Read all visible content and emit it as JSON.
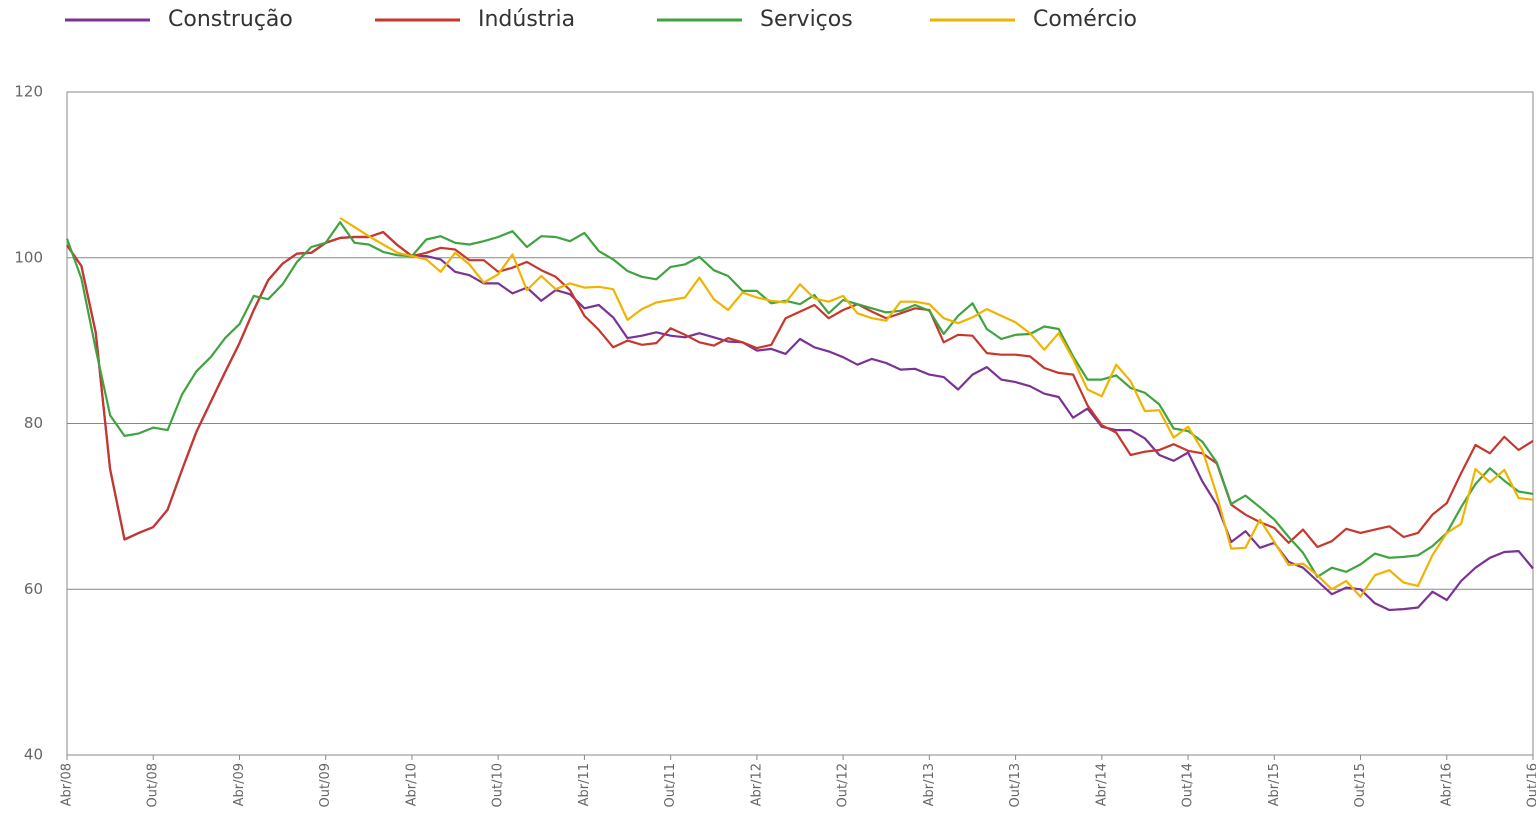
{
  "chart_data": {
    "type": "line",
    "categories": [
      "Abr/08",
      null,
      null,
      null,
      null,
      null,
      "Out/08",
      null,
      null,
      null,
      null,
      null,
      "Abr/09",
      null,
      null,
      null,
      null,
      null,
      "Out/09",
      null,
      null,
      null,
      null,
      null,
      "Abr/10",
      null,
      null,
      null,
      null,
      null,
      "Out/10",
      null,
      null,
      null,
      null,
      null,
      "Abr/11",
      null,
      null,
      null,
      null,
      null,
      "Out/11",
      null,
      null,
      null,
      null,
      null,
      "Abr/12",
      null,
      null,
      null,
      null,
      null,
      "Out/12",
      null,
      null,
      null,
      null,
      null,
      "Abr/13",
      null,
      null,
      null,
      null,
      null,
      "Out/13",
      null,
      null,
      null,
      null,
      null,
      "Abr/14",
      null,
      null,
      null,
      null,
      null,
      "Out/14",
      null,
      null,
      null,
      null,
      null,
      "Abr/15",
      null,
      null,
      null,
      null,
      null,
      "Out/15",
      null,
      null,
      null,
      null,
      null,
      "Abr/16",
      null,
      null,
      null,
      null,
      null,
      "Out/16"
    ],
    "series": [
      {
        "name": "Construção",
        "color": "#7b3294",
        "values": [
          101.5,
          99,
          91,
          74.5,
          66,
          66.8,
          67.5,
          69.6,
          74.4,
          79,
          82.6,
          86.2,
          89.7,
          93.7,
          97.3,
          99.3,
          100.5,
          100.6,
          101.8,
          102.4,
          102.5,
          102.5,
          103.1,
          101.5,
          100.2,
          100.2,
          99.8,
          98.3,
          97.9,
          96.9,
          96.9,
          95.7,
          96.4,
          94.8,
          96.1,
          95.6,
          93.9,
          94.3,
          92.8,
          90.3,
          90.6,
          91.0,
          90.6,
          90.4,
          90.9,
          90.4,
          89.9,
          89.8,
          88.8,
          89.0,
          88.4,
          90.2,
          89.2,
          88.7,
          88.0,
          87.1,
          87.8,
          87.3,
          86.5,
          86.6,
          85.9,
          85.6,
          84.1,
          85.9,
          86.8,
          85.3,
          85.0,
          84.5,
          83.6,
          83.2,
          80.7,
          81.8,
          79.6,
          79.2,
          79.2,
          78.2,
          76.2,
          75.5,
          76.5,
          73,
          70.2,
          65.7,
          67,
          65,
          65.6,
          63.3,
          62.6,
          61,
          59.4,
          60.2,
          60,
          58.3,
          57.5,
          57.6,
          57.8,
          59.7,
          58.7,
          61,
          62.6,
          63.8,
          64.5,
          64.6,
          62.5
        ]
      },
      {
        "name": "Indústria",
        "color": "#c8372d",
        "values": [
          101.5,
          99,
          91,
          74.5,
          66,
          66.8,
          67.5,
          69.6,
          74.4,
          79,
          82.6,
          86.2,
          89.7,
          93.7,
          97.3,
          99.3,
          100.5,
          100.6,
          101.8,
          102.4,
          102.5,
          102.5,
          103.1,
          101.5,
          100.2,
          100.6,
          101.2,
          101,
          99.7,
          99.7,
          98.3,
          98.8,
          99.5,
          98.5,
          97.7,
          96.1,
          93,
          91.3,
          89.2,
          90,
          89.5,
          89.7,
          91.5,
          90.7,
          89.8,
          89.4,
          90.3,
          89.8,
          89.1,
          89.5,
          92.7,
          93.5,
          94.3,
          92.7,
          93.7,
          94.4,
          93.5,
          92.7,
          93.3,
          93.9,
          93.7,
          89.8,
          90.7,
          90.6,
          88.5,
          88.3,
          88.3,
          88.1,
          86.7,
          86.1,
          85.9,
          82.2,
          79.8,
          78.9,
          76.2,
          76.6,
          76.8,
          77.5,
          76.7,
          76.4,
          75.2,
          70.2,
          69,
          68.1,
          67.4,
          65.6,
          67.2,
          65.1,
          65.8,
          67.3,
          66.8,
          67.2,
          67.6,
          66.3,
          66.8,
          69,
          70.4,
          74,
          77.4,
          76.4,
          78.4,
          76.8,
          77.9
        ]
      },
      {
        "name": "Serviços",
        "color": "#3fa33f",
        "values": [
          102.3,
          97.5,
          89,
          81,
          78.5,
          78.8,
          79.5,
          79.2,
          83.5,
          86.3,
          88,
          90.3,
          92,
          95.4,
          95,
          96.8,
          99.5,
          101.3,
          101.8,
          104.3,
          101.8,
          101.6,
          100.7,
          100.3,
          100.2,
          102.2,
          102.6,
          101.8,
          101.6,
          102,
          102.5,
          103.2,
          101.3,
          102.6,
          102.5,
          102,
          103,
          100.8,
          99.8,
          98.4,
          97.7,
          97.4,
          98.9,
          99.2,
          100.1,
          98.5,
          97.8,
          96,
          96,
          94.5,
          94.8,
          94.4,
          95.5,
          93.3,
          94.9,
          94.4,
          93.9,
          93.4,
          93.6,
          94.3,
          93.6,
          90.8,
          93,
          94.5,
          91.4,
          90.2,
          90.7,
          90.8,
          91.7,
          91.4,
          88.1,
          85.3,
          85.3,
          85.8,
          84.3,
          83.7,
          82.3,
          79.4,
          79.1,
          77.8,
          75.3,
          70.3,
          71.3,
          69.9,
          68.4,
          66.3,
          64.4,
          61.5,
          62.6,
          62.1,
          63,
          64.3,
          63.8,
          63.9,
          64.1,
          65.2,
          66.8,
          69.9,
          72.7,
          74.6,
          73.1,
          71.8,
          71.5
        ]
      },
      {
        "name": "Comércio",
        "color": "#f0b400",
        "values": [
          null,
          null,
          null,
          null,
          null,
          null,
          null,
          null,
          null,
          null,
          null,
          null,
          null,
          null,
          null,
          null,
          null,
          null,
          null,
          104.8,
          103.7,
          102.6,
          101.6,
          100.6,
          100.2,
          99.8,
          98.3,
          100.6,
          99.2,
          97,
          98,
          100.4,
          96.1,
          97.8,
          96.2,
          96.9,
          96.4,
          96.5,
          96.2,
          92.5,
          93.8,
          94.6,
          94.9,
          95.2,
          97.6,
          95,
          93.7,
          95.8,
          95.2,
          94.8,
          94.6,
          96.8,
          95.1,
          94.7,
          95.4,
          93.3,
          92.7,
          92.4,
          94.7,
          94.7,
          94.4,
          92.7,
          92.1,
          92.8,
          93.8,
          93,
          92.2,
          90.9,
          88.9,
          90.9,
          87.8,
          84.1,
          83.3,
          87.1,
          85.1,
          81.5,
          81.6,
          78.3,
          79.6,
          76.8,
          71.4,
          64.9,
          65,
          68.4,
          65.7,
          62.9,
          63.1,
          61.7,
          60,
          61,
          59.1,
          61.7,
          62.3,
          60.8,
          60.4,
          64.1,
          66.8,
          67.9,
          74.5,
          72.9,
          74.4,
          71,
          70.8
        ]
      }
    ],
    "ylim": [
      40,
      120
    ],
    "yticks": [
      40,
      60,
      80,
      100,
      120
    ],
    "grid": true
  }
}
